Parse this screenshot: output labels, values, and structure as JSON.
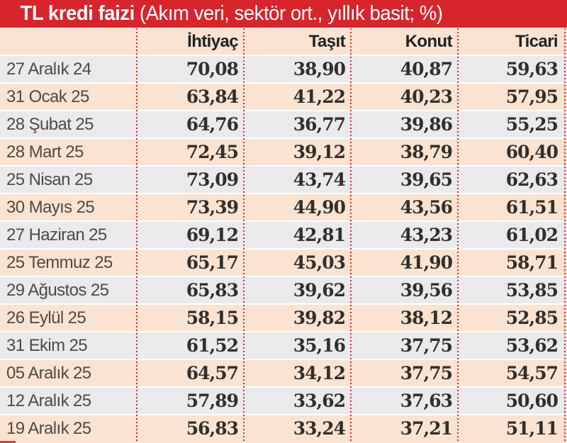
{
  "title": {
    "bold": "TL kredi faizi",
    "rest": " (Akım veri, sektör ort., yıllık basit; %)"
  },
  "colors": {
    "accent_red": "#d8242b",
    "dotted_line_red": "#e4242c",
    "row_gray": "#eaeaec",
    "row_peach": "#fae3d0",
    "number_text": "#312f2c",
    "date_text": "#4e4a47"
  },
  "chart_data": {
    "type": "table",
    "title": "TL kredi faizi (Akım veri, sektör ort., yıllık basit; %)",
    "columns": [
      "İhtiyaç",
      "Taşıt",
      "Konut",
      "Ticari"
    ],
    "rows": [
      {
        "date": "27 Aralık 24",
        "values": [
          "70,08",
          "38,90",
          "40,87",
          "59,63"
        ]
      },
      {
        "date": "31 Ocak 25",
        "values": [
          "63,84",
          "41,22",
          "40,23",
          "57,95"
        ]
      },
      {
        "date": "28 Şubat 25",
        "values": [
          "64,76",
          "36,77",
          "39,86",
          "55,25"
        ]
      },
      {
        "date": "28 Mart 25",
        "values": [
          "72,45",
          "39,12",
          "38,79",
          "60,40"
        ]
      },
      {
        "date": "25 Nisan 25",
        "values": [
          "73,09",
          "43,74",
          "39,65",
          "62,63"
        ]
      },
      {
        "date": "30 Mayıs 25",
        "values": [
          "73,39",
          "44,90",
          "43,56",
          "61,51"
        ]
      },
      {
        "date": "27 Haziran 25",
        "values": [
          "69,12",
          "42,81",
          "43,23",
          "61,02"
        ]
      },
      {
        "date": "25 Temmuz 25",
        "values": [
          "65,17",
          "45,03",
          "41,90",
          "58,71"
        ]
      },
      {
        "date": "29 Ağustos 25",
        "values": [
          "65,83",
          "39,62",
          "39,56",
          "53,85"
        ]
      },
      {
        "date": "26 Eylül 25",
        "values": [
          "58,15",
          "39,82",
          "38,12",
          "52,85"
        ]
      },
      {
        "date": "31 Ekim 25",
        "values": [
          "61,52",
          "35,16",
          "37,75",
          "53,62"
        ]
      },
      {
        "date": "05 Aralık 25",
        "values": [
          "64,57",
          "34,12",
          "37,75",
          "54,57"
        ]
      },
      {
        "date": "12 Aralık 25",
        "values": [
          "57,89",
          "33,62",
          "37,63",
          "50,60"
        ]
      },
      {
        "date": "19 Aralık 25",
        "values": [
          "56,83",
          "33,24",
          "37,21",
          "51,11"
        ]
      }
    ],
    "numeric_series": [
      {
        "name": "İhtiyaç",
        "values": [
          70.08,
          63.84,
          64.76,
          72.45,
          73.09,
          73.39,
          69.12,
          65.17,
          65.83,
          58.15,
          61.52,
          64.57,
          57.89,
          56.83
        ]
      },
      {
        "name": "Taşıt",
        "values": [
          38.9,
          41.22,
          36.77,
          39.12,
          43.74,
          44.9,
          42.81,
          45.03,
          39.62,
          39.82,
          35.16,
          34.12,
          33.62,
          33.24
        ]
      },
      {
        "name": "Konut",
        "values": [
          40.87,
          40.23,
          39.86,
          38.79,
          39.65,
          43.56,
          43.23,
          41.9,
          39.56,
          38.12,
          37.75,
          37.75,
          37.63,
          37.21
        ]
      },
      {
        "name": "Ticari",
        "values": [
          59.63,
          57.95,
          55.25,
          60.4,
          62.63,
          61.51,
          61.02,
          58.71,
          53.85,
          52.85,
          53.62,
          54.57,
          50.6,
          51.11
        ]
      }
    ]
  }
}
